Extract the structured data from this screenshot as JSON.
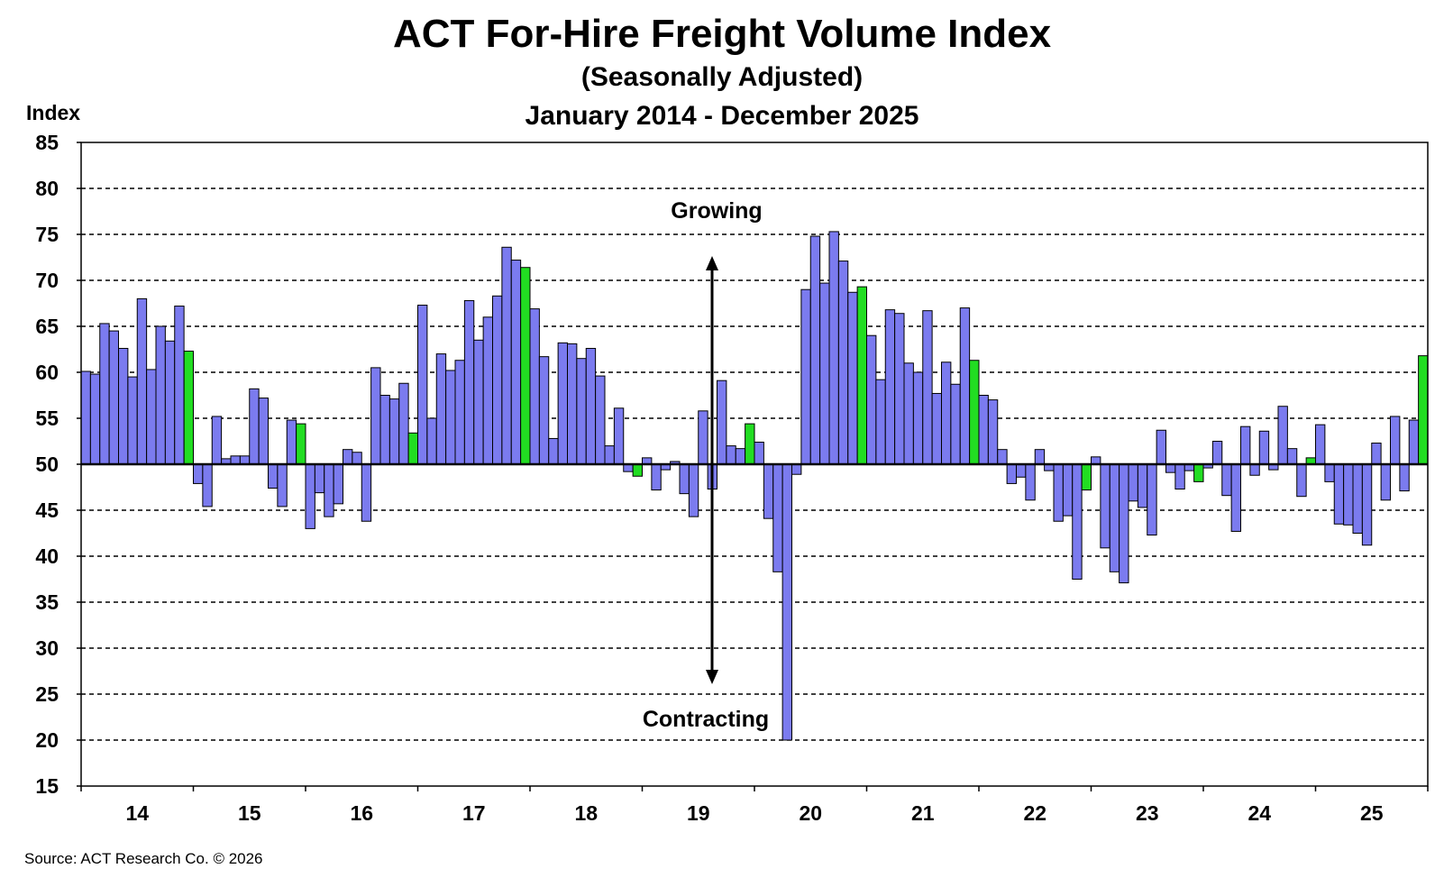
{
  "chart_data": {
    "type": "bar",
    "title": "ACT For-Hire Freight Volume Index",
    "subtitle": "(Seasonally Adjusted)",
    "date_range": "January 2014 - December 2025",
    "ylabel": "Index",
    "ylim": [
      15,
      85
    ],
    "yticks": [
      15,
      20,
      25,
      30,
      35,
      40,
      45,
      50,
      55,
      60,
      65,
      70,
      75,
      80,
      85
    ],
    "baseline": 50,
    "grid": true,
    "x_tick_labels": [
      "14",
      "15",
      "16",
      "17",
      "18",
      "19",
      "20",
      "21",
      "22",
      "23",
      "24",
      "25"
    ],
    "annotations": {
      "growing": "Growing",
      "contracting": "Contracting"
    },
    "source": "Source:  ACT Research Co. © 2026",
    "colors": {
      "bar": "#7b7bef",
      "december": "#22dd22",
      "grid": "#000000"
    },
    "values": [
      60.1,
      59.8,
      65.3,
      64.5,
      62.6,
      59.5,
      68.0,
      60.3,
      65.0,
      63.4,
      67.2,
      62.3,
      47.9,
      45.4,
      55.2,
      50.6,
      50.9,
      50.9,
      58.2,
      57.2,
      47.4,
      45.4,
      54.8,
      54.4,
      43.0,
      46.9,
      44.3,
      45.7,
      51.6,
      51.3,
      43.8,
      60.5,
      57.5,
      57.1,
      58.8,
      53.4,
      67.3,
      55.0,
      62.0,
      60.2,
      61.3,
      67.8,
      63.5,
      66.0,
      68.3,
      73.6,
      72.2,
      71.4,
      66.9,
      61.7,
      52.8,
      63.2,
      63.1,
      61.5,
      62.6,
      59.6,
      52.0,
      56.1,
      49.2,
      48.7,
      50.7,
      47.2,
      49.4,
      50.3,
      46.8,
      44.3,
      55.8,
      47.3,
      59.1,
      52.0,
      51.7,
      54.4,
      52.4,
      44.1,
      38.3,
      20.0,
      48.9,
      69.0,
      74.8,
      69.7,
      75.3,
      72.1,
      68.7,
      69.3,
      64.0,
      59.2,
      66.8,
      66.4,
      61.0,
      60.0,
      66.7,
      57.7,
      61.1,
      58.7,
      67.0,
      61.3,
      57.5,
      57.0,
      51.6,
      47.9,
      48.6,
      46.1,
      51.6,
      49.3,
      43.8,
      44.4,
      37.5,
      47.2,
      50.8,
      40.9,
      38.3,
      37.1,
      46.0,
      45.3,
      42.3,
      53.7,
      49.1,
      47.3,
      49.3,
      48.1,
      49.6,
      52.5,
      46.6,
      42.7,
      54.1,
      48.8,
      53.6,
      49.4,
      56.3,
      51.7,
      46.5,
      50.7,
      54.3,
      48.1,
      43.5,
      43.4,
      42.5,
      41.2,
      52.3,
      46.1,
      55.2,
      47.1,
      54.8,
      61.8
    ]
  }
}
